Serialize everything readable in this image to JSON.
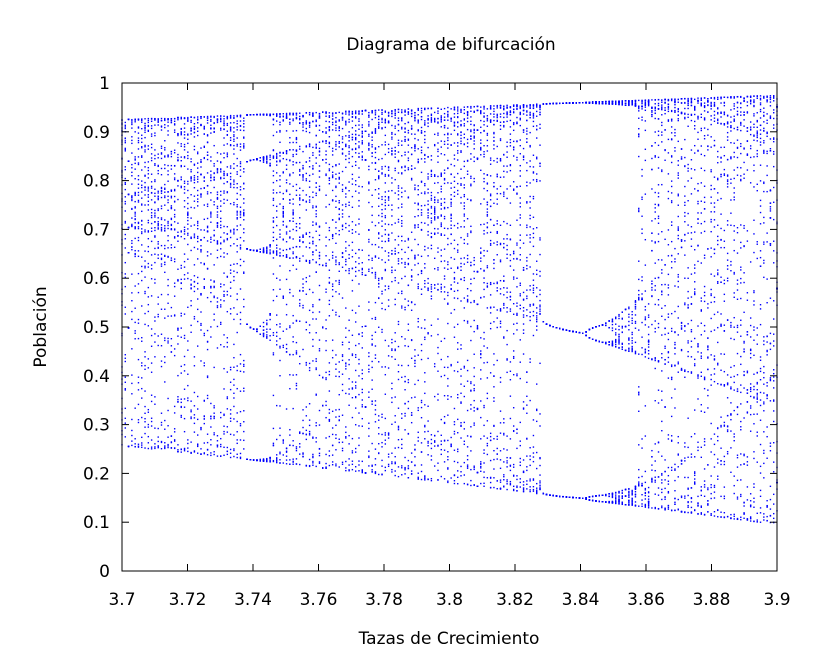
{
  "chart_data": {
    "type": "scatter",
    "title": "Diagrama de bifurcación",
    "xlabel": "Tazas de Crecimiento",
    "ylabel": "Población",
    "xlim": [
      3.7,
      3.9
    ],
    "ylim": [
      0,
      1
    ],
    "x_ticks": [
      "3.7",
      "3.72",
      "3.74",
      "3.76",
      "3.78",
      "3.8",
      "3.82",
      "3.84",
      "3.86",
      "3.88",
      "3.9"
    ],
    "y_ticks": [
      "0",
      "0.1",
      "0.2",
      "0.3",
      "0.4",
      "0.5",
      "0.6",
      "0.7",
      "0.8",
      "0.9",
      "1"
    ],
    "grid": false,
    "legend": false,
    "series": [
      {
        "model": "logistic map x(n+1) = r·x(n)·(1 − x(n))",
        "r_range": [
          3.7,
          3.9
        ],
        "r_samples": 200,
        "points_per_r": 45,
        "color": "#0000ff"
      }
    ]
  }
}
